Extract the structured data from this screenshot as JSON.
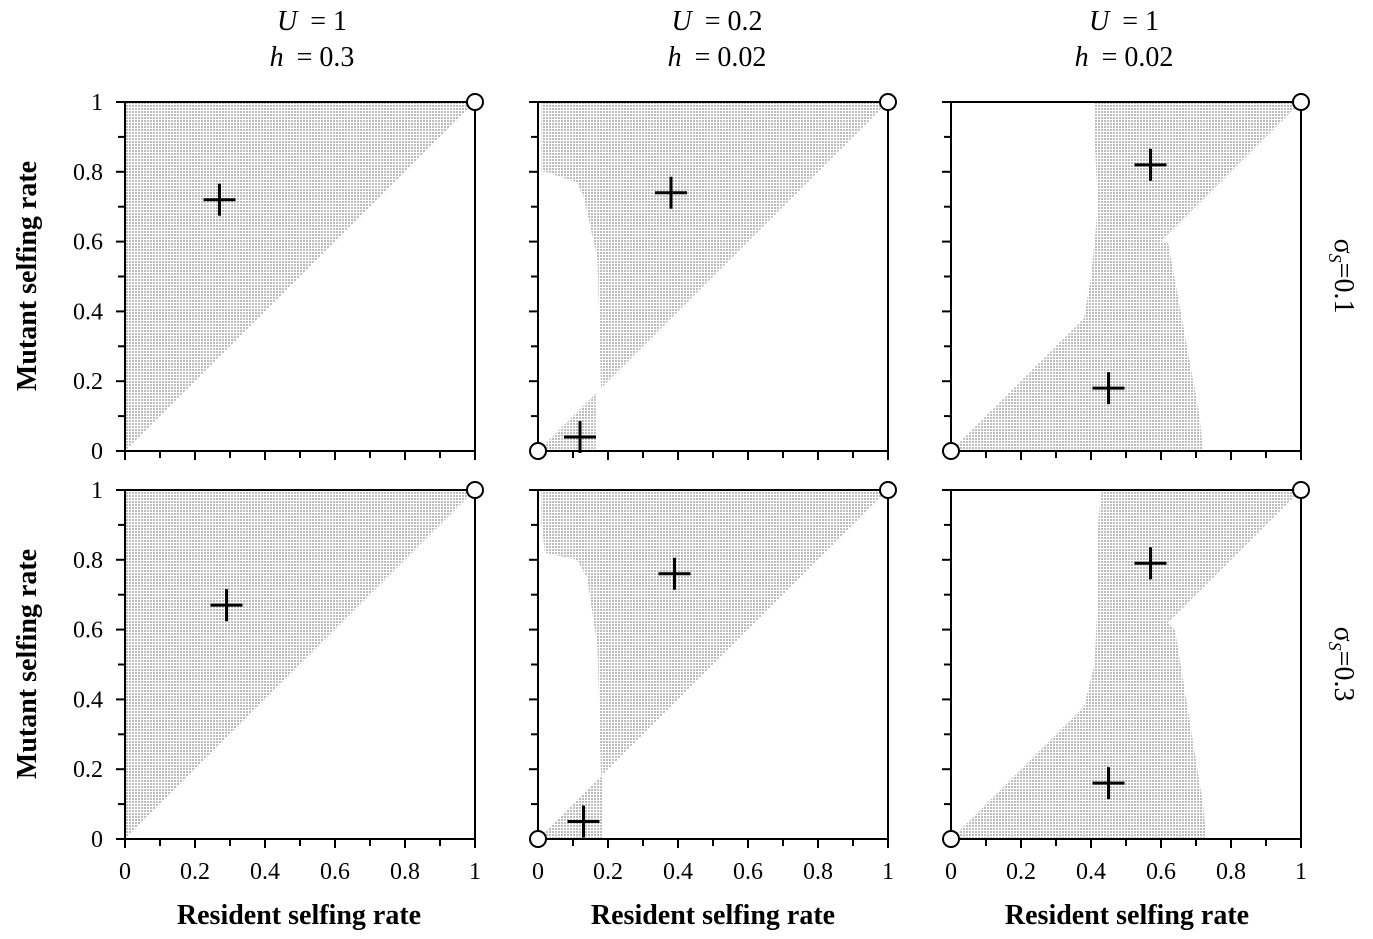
{
  "figure": {
    "column_headers": [
      {
        "u_label": "U",
        "u_value": "= 1",
        "h_label": "h",
        "h_value": "= 0.3"
      },
      {
        "u_label": "U",
        "u_value": "= 0.2",
        "h_label": "h",
        "h_value": "= 0.02"
      },
      {
        "u_label": "U",
        "u_value": "= 1",
        "h_label": "h",
        "h_value": "= 0.02"
      }
    ],
    "row_labels": [
      {
        "sigma": "σ",
        "sub": "S",
        "value": "=0.1"
      },
      {
        "sigma": "σ",
        "sub": "S",
        "value": "=0.3"
      }
    ],
    "ylabel": "Mutant selfing rate",
    "xlabel": "Resident selfing rate",
    "x_ticks": [
      "0",
      "0.2",
      "0.4",
      "0.6",
      "0.8",
      "1"
    ],
    "y_ticks": [
      "0",
      "0.2",
      "0.4",
      "0.6",
      "0.8",
      "1"
    ],
    "colors": {
      "invasion_region": "#bdbdbd",
      "axes": "#000000",
      "background": "#ffffff"
    }
  },
  "chart_data": [
    {
      "type": "heatmap",
      "row": 0,
      "col": 0,
      "xlim": [
        0,
        1
      ],
      "ylim": [
        0,
        1
      ],
      "region_polygon": [
        [
          0,
          0
        ],
        [
          1,
          1
        ],
        [
          0,
          1
        ]
      ],
      "crosses": [
        [
          0.27,
          0.72
        ]
      ],
      "circles": [
        [
          1,
          1
        ]
      ]
    },
    {
      "type": "heatmap",
      "row": 0,
      "col": 1,
      "xlim": [
        0,
        1
      ],
      "ylim": [
        0,
        1
      ],
      "region_polygon": [
        [
          0.01,
          1
        ],
        [
          1,
          1
        ],
        [
          0.18,
          0.18
        ],
        [
          0.17,
          0.55
        ],
        [
          0.13,
          0.73
        ],
        [
          0.11,
          0.77
        ],
        [
          0.02,
          0.8
        ],
        [
          0.01,
          0.8
        ]
      ],
      "region_polygon_2": [
        [
          0,
          0
        ],
        [
          0.17,
          0.17
        ],
        [
          0.17,
          0.17
        ],
        [
          0.17,
          0.17
        ],
        [
          0.165,
          0.17
        ],
        [
          0.165,
          0.02
        ],
        [
          0.165,
          0
        ]
      ],
      "crosses": [
        [
          0.38,
          0.74
        ],
        [
          0.12,
          0.04
        ]
      ],
      "circles": [
        [
          1,
          1
        ],
        [
          0,
          0
        ]
      ]
    },
    {
      "type": "heatmap",
      "row": 0,
      "col": 2,
      "xlim": [
        0,
        1
      ],
      "ylim": [
        0,
        1
      ],
      "region_polygon": [
        [
          0.41,
          1
        ],
        [
          1,
          1
        ],
        [
          0.6,
          0.6
        ],
        [
          0.62,
          0.6
        ],
        [
          0.71,
          0.1
        ],
        [
          0.72,
          0
        ],
        [
          0,
          0
        ],
        [
          0.38,
          0.38
        ],
        [
          0.4,
          0.5
        ],
        [
          0.42,
          0.7
        ],
        [
          0.41,
          0.9
        ]
      ],
      "crosses": [
        [
          0.57,
          0.82
        ],
        [
          0.45,
          0.18
        ]
      ],
      "circles": [
        [
          1,
          1
        ],
        [
          0,
          0
        ]
      ]
    },
    {
      "type": "heatmap",
      "row": 1,
      "col": 0,
      "xlim": [
        0,
        1
      ],
      "ylim": [
        0,
        1
      ],
      "region_polygon": [
        [
          0,
          0
        ],
        [
          1,
          1
        ],
        [
          0,
          1
        ]
      ],
      "crosses": [
        [
          0.29,
          0.67
        ]
      ],
      "circles": [
        [
          1,
          1
        ]
      ]
    },
    {
      "type": "heatmap",
      "row": 1,
      "col": 1,
      "xlim": [
        0,
        1
      ],
      "ylim": [
        0,
        1
      ],
      "region_polygon": [
        [
          0.01,
          1
        ],
        [
          1,
          1
        ],
        [
          0.18,
          0.18
        ],
        [
          0.17,
          0.55
        ],
        [
          0.14,
          0.75
        ],
        [
          0.11,
          0.8
        ],
        [
          0.02,
          0.82
        ],
        [
          0.01,
          0.9
        ]
      ],
      "region_polygon_2": [
        [
          0,
          0
        ],
        [
          0.18,
          0.18
        ],
        [
          0.185,
          0.17
        ],
        [
          0.185,
          0.02
        ],
        [
          0.185,
          0
        ]
      ],
      "crosses": [
        [
          0.39,
          0.76
        ],
        [
          0.13,
          0.05
        ]
      ],
      "circles": [
        [
          1,
          1
        ],
        [
          0,
          0
        ]
      ]
    },
    {
      "type": "heatmap",
      "row": 1,
      "col": 2,
      "xlim": [
        0,
        1
      ],
      "ylim": [
        0,
        1
      ],
      "region_polygon": [
        [
          0.43,
          1
        ],
        [
          1,
          1
        ],
        [
          0.62,
          0.62
        ],
        [
          0.64,
          0.6
        ],
        [
          0.72,
          0.1
        ],
        [
          0.73,
          0
        ],
        [
          0,
          0
        ],
        [
          0.38,
          0.38
        ],
        [
          0.41,
          0.5
        ],
        [
          0.42,
          0.7
        ],
        [
          0.42,
          0.9
        ]
      ],
      "crosses": [
        [
          0.57,
          0.79
        ],
        [
          0.45,
          0.16
        ]
      ],
      "circles": [
        [
          1,
          1
        ],
        [
          0,
          0
        ]
      ]
    }
  ]
}
